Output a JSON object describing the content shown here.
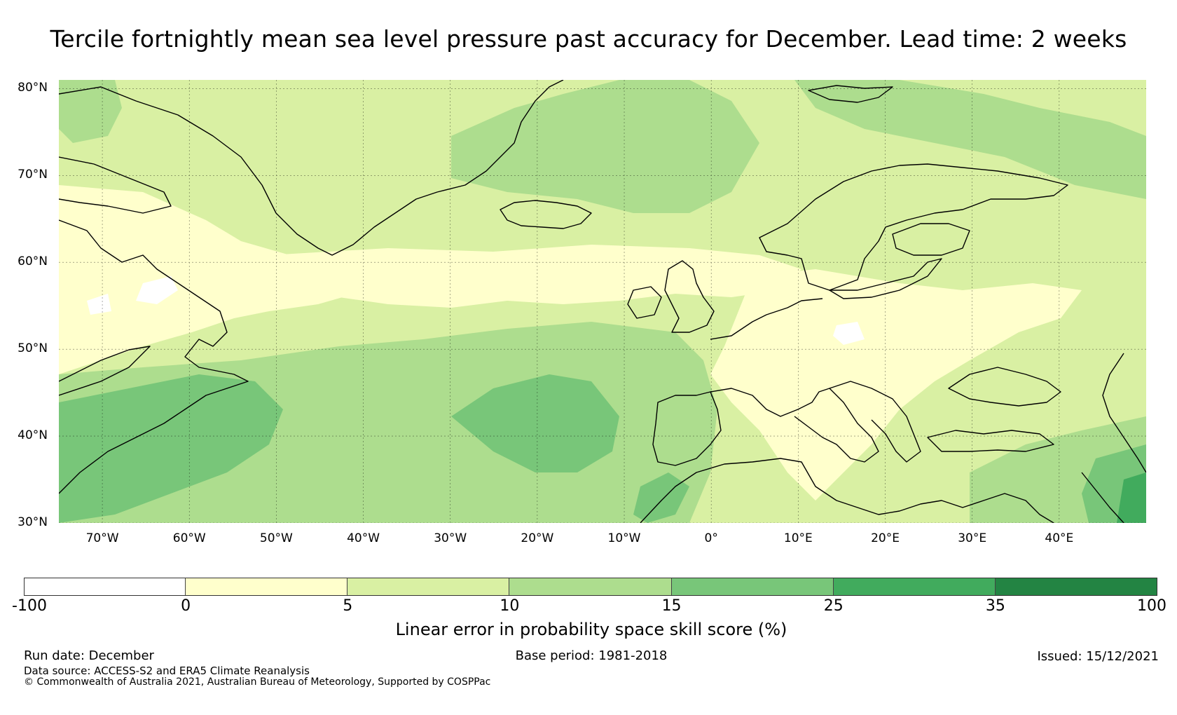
{
  "title": "Tercile fortnightly mean sea level pressure past accuracy for December. Lead time: 2 weeks",
  "map": {
    "lon_range": [
      -75,
      50
    ],
    "lat_range": [
      30,
      81
    ],
    "lat_ticks": [
      {
        "value": 80,
        "label": "80°N"
      },
      {
        "value": 70,
        "label": "70°N"
      },
      {
        "value": 60,
        "label": "60°N"
      },
      {
        "value": 50,
        "label": "50°N"
      },
      {
        "value": 40,
        "label": "40°N"
      },
      {
        "value": 30,
        "label": "30°N"
      }
    ],
    "lon_ticks": [
      {
        "value": -70,
        "label": "70°W"
      },
      {
        "value": -60,
        "label": "60°W"
      },
      {
        "value": -50,
        "label": "50°W"
      },
      {
        "value": -40,
        "label": "40°W"
      },
      {
        "value": -30,
        "label": "30°W"
      },
      {
        "value": -20,
        "label": "20°W"
      },
      {
        "value": -10,
        "label": "10°W"
      },
      {
        "value": 0,
        "label": "0°"
      },
      {
        "value": 10,
        "label": "10°E"
      },
      {
        "value": 20,
        "label": "20°E"
      },
      {
        "value": 30,
        "label": "30°E"
      },
      {
        "value": 40,
        "label": "40°E"
      }
    ]
  },
  "colorbar": {
    "label": "Linear error in probability space skill score (%)",
    "bins": [
      {
        "from": "-100",
        "to": "0",
        "color": "#ffffff"
      },
      {
        "from": "0",
        "to": "5",
        "color": "#ffffcc"
      },
      {
        "from": "5",
        "to": "10",
        "color": "#d9f0a3"
      },
      {
        "from": "10",
        "to": "15",
        "color": "#addd8e"
      },
      {
        "from": "15",
        "to": "25",
        "color": "#78c679"
      },
      {
        "from": "25",
        "to": "35",
        "color": "#41ab5d"
      },
      {
        "from": "35",
        "to": "100",
        "color": "#238443"
      }
    ],
    "ticks": [
      "-100",
      "0",
      "5",
      "10",
      "15",
      "25",
      "35",
      "100"
    ]
  },
  "footer": {
    "run_date": "Run date: December",
    "base_period": "Base period: 1981-2018",
    "issued": "Issued: 15/12/2021",
    "data_source": "Data source: ACCESS-S2 and ERA5 Climate Reanalysis",
    "copyright": "© Commonwealth of Australia 2021, Australian Bureau of Meteorology, Supported by COSPPac"
  }
}
